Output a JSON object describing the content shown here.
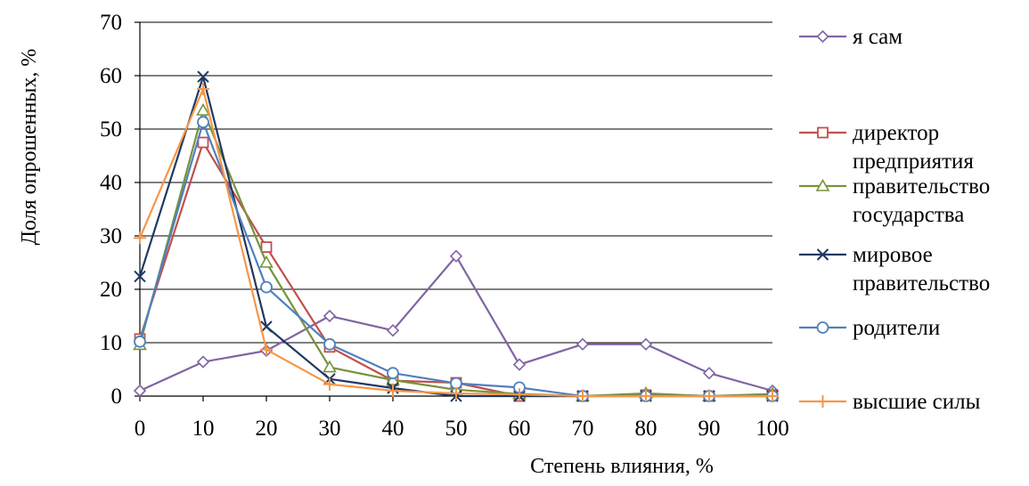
{
  "chart_data": {
    "type": "line",
    "title": "",
    "xlabel": "Степень влияния, %",
    "ylabel": "Доля опрошенных, %",
    "x": [
      0,
      10,
      20,
      30,
      40,
      50,
      60,
      70,
      80,
      90,
      100
    ],
    "xlim": [
      0,
      100
    ],
    "ylim": [
      0,
      70
    ],
    "yticks": [
      0,
      10,
      20,
      30,
      40,
      50,
      60,
      70
    ],
    "grid": true,
    "legend_position": "right",
    "series": [
      {
        "name": "я сам",
        "marker": "diamond",
        "color": "#8064a2",
        "values": [
          1,
          6.4,
          8.5,
          15,
          12.3,
          26.2,
          5.9,
          9.7,
          9.7,
          4.3,
          1
        ]
      },
      {
        "name": "директор предприятия",
        "marker": "square",
        "color": "#c0504d",
        "values": [
          10.7,
          47.5,
          27.9,
          9.2,
          2.9,
          2.5,
          0,
          0,
          0.2,
          0,
          0.2
        ]
      },
      {
        "name": "правительство государства",
        "marker": "triangle",
        "color": "#77933c",
        "values": [
          9.6,
          53.5,
          25,
          5.4,
          3,
          1.2,
          0.4,
          0,
          0.5,
          0,
          0.4
        ]
      },
      {
        "name": "мировое правительство",
        "marker": "x",
        "color": "#1f3864",
        "values": [
          22.4,
          59.8,
          13,
          3.2,
          1.5,
          0,
          0,
          0,
          0,
          0,
          0
        ]
      },
      {
        "name": "родители",
        "marker": "circle",
        "color": "#4f81bd",
        "values": [
          10.2,
          51.3,
          20.4,
          9.7,
          4.3,
          2.4,
          1.6,
          0,
          0,
          0,
          0
        ]
      },
      {
        "name": "высшие силы",
        "marker": "plus",
        "color": "#f79646",
        "values": [
          29.6,
          57.5,
          8.7,
          2.2,
          1,
          0.5,
          0.3,
          0,
          0,
          0,
          0
        ]
      }
    ],
    "legend": {
      "entries": [
        {
          "lines": [
            "я сам"
          ]
        },
        {
          "lines": [
            "директор",
            "предприятия"
          ]
        },
        {
          "lines": [
            "правительство",
            "государства"
          ]
        },
        {
          "lines": [
            "мировое",
            "правительство"
          ]
        },
        {
          "lines": [
            "родители"
          ]
        },
        {
          "lines": [
            "высшие силы"
          ]
        }
      ]
    }
  }
}
